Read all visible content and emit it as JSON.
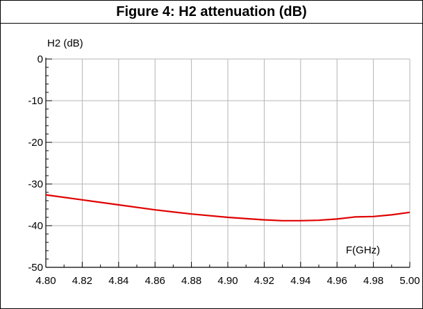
{
  "chart_data": {
    "type": "line",
    "title": "Figure 4: H2 attenuation (dB)",
    "xlabel": "F(GHz)",
    "ylabel": "H2 (dB)",
    "xlim": [
      4.8,
      5.0
    ],
    "ylim": [
      -50,
      0
    ],
    "x_ticks": [
      "4.80",
      "4.82",
      "4.84",
      "4.86",
      "4.88",
      "4.90",
      "4.92",
      "4.94",
      "4.96",
      "4.98",
      "5.00"
    ],
    "y_ticks": [
      "0",
      "-10",
      "-20",
      "-30",
      "-40",
      "-50"
    ],
    "grid": true,
    "series": [
      {
        "color": "#e00000",
        "x": [
          4.8,
          4.82,
          4.84,
          4.86,
          4.88,
          4.9,
          4.92,
          4.93,
          4.94,
          4.95,
          4.96,
          4.97,
          4.98,
          4.99,
          5.0
        ],
        "y": [
          -32.6,
          -33.8,
          -35.0,
          -36.2,
          -37.2,
          -38.0,
          -38.6,
          -38.8,
          -38.8,
          -38.7,
          -38.4,
          -37.9,
          -37.8,
          -37.4,
          -36.8
        ]
      }
    ]
  }
}
